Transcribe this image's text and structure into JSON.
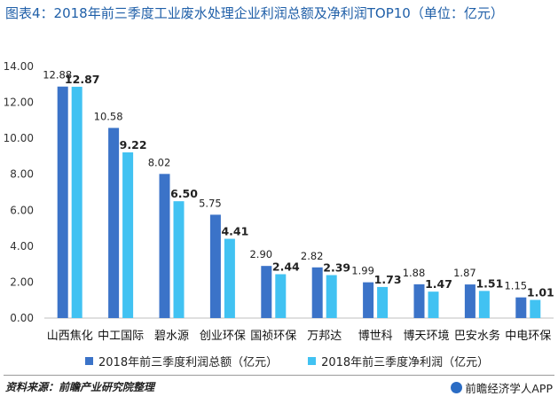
{
  "title": "图表4：2018年前三季度工业废水处理企业利润总额及净利润TOP10（单位：亿元）",
  "legend": [
    {
      "label": "2018年前三季度利润总额（亿元）",
      "color": "#3b73c8"
    },
    {
      "label": "2018年前三季度净利润（亿元）",
      "color": "#41c2f2"
    }
  ],
  "footer": {
    "source": "资料来源：前瞻产业研究院整理",
    "brand": "前瞻经济学人APP"
  },
  "chart_data": {
    "type": "bar",
    "categories": [
      "山西焦化",
      "中工国际",
      "碧水源",
      "创业环保",
      "国祯环保",
      "万邦达",
      "博世科",
      "博天环境",
      "巴安水务",
      "中电环保"
    ],
    "series": [
      {
        "name": "2018年前三季度利润总额（亿元）",
        "values": [
          12.88,
          10.58,
          8.02,
          5.75,
          2.9,
          2.82,
          1.99,
          1.88,
          1.87,
          1.15
        ],
        "color": "#3b73c8"
      },
      {
        "name": "2018年前三季度净利润（亿元）",
        "values": [
          12.87,
          9.22,
          6.5,
          4.41,
          2.44,
          2.39,
          1.73,
          1.47,
          1.51,
          1.01
        ],
        "color": "#41c2f2"
      }
    ],
    "value_labels": [
      [
        "12.88",
        "10.58",
        "8.02",
        "5.75",
        "2.90",
        "2.82",
        "1.99",
        "1.88",
        "1.87",
        "1.15"
      ],
      [
        "12.87",
        "9.22",
        "6.50",
        "4.41",
        "2.44",
        "2.39",
        "1.73",
        "1.47",
        "1.51",
        "1.01"
      ]
    ],
    "yticks": [
      "0.00",
      "2.00",
      "4.00",
      "6.00",
      "8.00",
      "10.00",
      "12.00",
      "14.00"
    ],
    "ylim": [
      0,
      14
    ],
    "grid": false,
    "legend_position": "bottom"
  }
}
